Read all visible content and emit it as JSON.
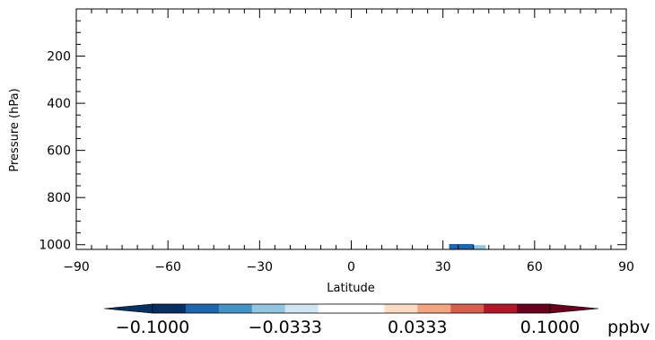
{
  "chart_data": {
    "type": "heatmap",
    "title": "",
    "xlabel": "Latitude",
    "ylabel": "Pressure (hPa)",
    "xlim": [
      -90,
      90
    ],
    "ylim": [
      1020,
      0
    ],
    "y_reversed": true,
    "x_ticks": [
      {
        "value": -90,
        "label": "−90"
      },
      {
        "value": -60,
        "label": "−60"
      },
      {
        "value": -30,
        "label": "−30"
      },
      {
        "value": 0,
        "label": "0"
      },
      {
        "value": 30,
        "label": "30"
      },
      {
        "value": 60,
        "label": "60"
      },
      {
        "value": 90,
        "label": "90"
      }
    ],
    "y_ticks": [
      {
        "value": 200,
        "label": "200"
      },
      {
        "value": 400,
        "label": "400"
      },
      {
        "value": 600,
        "label": "600"
      },
      {
        "value": 800,
        "label": "800"
      },
      {
        "value": 1000,
        "label": "1000"
      }
    ],
    "cells": [
      {
        "lat0": -16,
        "lat1": -8,
        "p0": 1000,
        "p1": 1020,
        "value": 0.015
      },
      {
        "lat0": 16,
        "lat1": 20,
        "p0": 1005,
        "p1": 1020,
        "value": -0.015
      },
      {
        "lat0": 32,
        "lat1": 40,
        "p0": 997,
        "p1": 1020,
        "value": -0.07
      },
      {
        "lat0": 40,
        "lat1": 44,
        "p0": 1002,
        "p1": 1020,
        "value": -0.04
      },
      {
        "lat0": 51,
        "lat1": 56,
        "p0": 1005,
        "p1": 1020,
        "value": -0.015
      },
      {
        "lat0": 63,
        "lat1": 67,
        "p0": 1005,
        "p1": 1020,
        "value": 0.015
      },
      {
        "lat0": 67,
        "lat1": 70,
        "p0": 993,
        "p1": 1020,
        "value": 0.015
      }
    ],
    "colorbar": {
      "unit": "ppbv",
      "levels": [
        -0.1,
        -0.0833,
        -0.0667,
        -0.05,
        -0.0333,
        -0.0167,
        0,
        0.0167,
        0.0333,
        0.05,
        0.0667,
        0.0833,
        0.1
      ],
      "colors": [
        "#053061",
        "#2166ac",
        "#4393c3",
        "#92c5de",
        "#d1e5f0",
        "#ffffff",
        "#ffffff",
        "#fddbc7",
        "#f4a582",
        "#d6604d",
        "#b2182b",
        "#67001f"
      ],
      "under_color": "#053061",
      "over_color": "#67001f",
      "tick_labels": [
        {
          "value": -0.1,
          "label": "−0.1000"
        },
        {
          "value": -0.0333,
          "label": "−0.0333"
        },
        {
          "value": 0.0333,
          "label": "0.0333"
        },
        {
          "value": 0.1,
          "label": "0.1000"
        }
      ]
    }
  }
}
